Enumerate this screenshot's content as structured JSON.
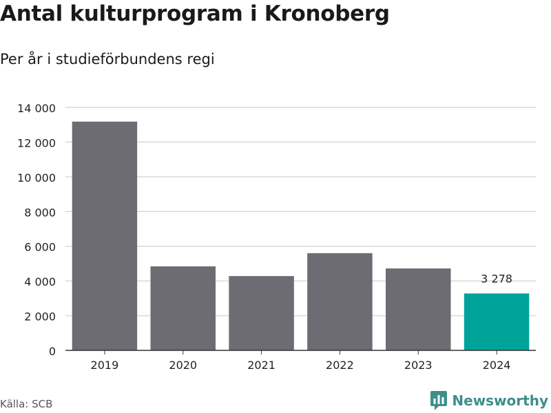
{
  "title": "Antal kulturprogram i Kronoberg",
  "subtitle": "Per år i studieförbundens regi",
  "source": "Källa: SCB",
  "brand": {
    "name": "Newsworthy",
    "icon": "newsworthy-logo-icon",
    "color": "#3d8f8a"
  },
  "chart_data": {
    "type": "bar",
    "categories": [
      "2019",
      "2020",
      "2021",
      "2022",
      "2023",
      "2024"
    ],
    "values": [
      13180,
      4840,
      4280,
      5600,
      4720,
      3278
    ],
    "highlight_index": 5,
    "highlight_label": "3 278",
    "ylim": [
      0,
      14000
    ],
    "yticks": [
      0,
      2000,
      4000,
      6000,
      8000,
      10000,
      12000,
      14000
    ],
    "ytick_labels": [
      "0",
      "2 000",
      "4 000",
      "6 000",
      "8 000",
      "10 000",
      "12 000",
      "14 000"
    ],
    "grid": true,
    "colors": {
      "bar": "#6d6c73",
      "highlight": "#00a39a",
      "grid": "#d9d9d9",
      "axis": "#333333"
    }
  }
}
